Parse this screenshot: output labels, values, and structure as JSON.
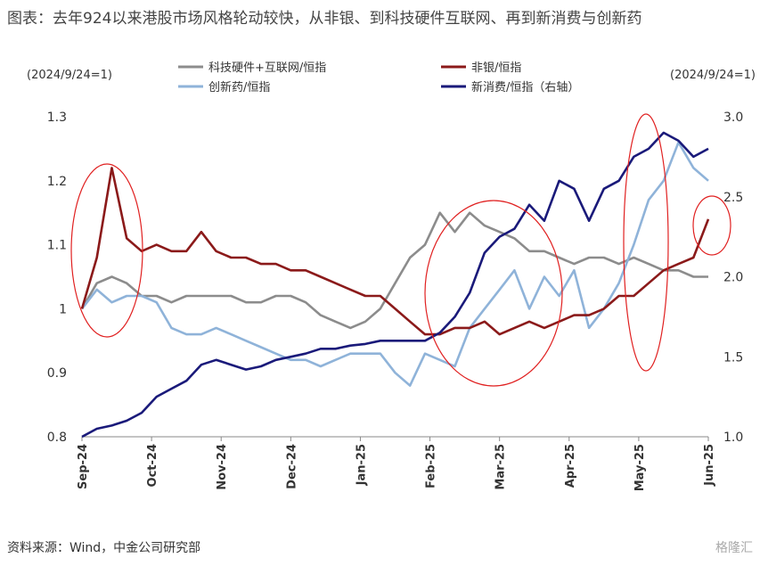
{
  "title": "图表：去年924以来港股市场风格轮动较快，从非银、到科技硬件互联网、再到新消费与创新药",
  "source": "资料来源：Wind，中金公司研究部",
  "watermark": "格隆汇",
  "chart_data": {
    "type": "line",
    "left_unit": "(2024/9/24=1)",
    "right_unit": "(2024/9/24=1)",
    "y_left": {
      "min": 0.8,
      "max": 1.3,
      "ticks": [
        "0.8",
        "0.9",
        "1",
        "1.1",
        "1.2",
        "1.3"
      ]
    },
    "y_right": {
      "min": 1.0,
      "max": 3.0,
      "ticks": [
        "1.0",
        "1.5",
        "2.0",
        "2.5",
        "3.0"
      ]
    },
    "x_ticks": [
      "Sep-24",
      "Oct-24",
      "Nov-24",
      "Dec-24",
      "Jan-25",
      "Feb-25",
      "Mar-25",
      "Apr-25",
      "May-25",
      "Jun-25"
    ],
    "series": [
      {
        "name": "科技硬件+互联网/恒指",
        "color": "#8c8c8c",
        "axis": "left",
        "values": [
          1.0,
          1.04,
          1.05,
          1.04,
          1.02,
          1.02,
          1.01,
          1.02,
          1.02,
          1.02,
          1.02,
          1.01,
          1.01,
          1.02,
          1.02,
          1.01,
          0.99,
          0.98,
          0.97,
          0.98,
          1.0,
          1.04,
          1.08,
          1.1,
          1.15,
          1.12,
          1.15,
          1.13,
          1.12,
          1.11,
          1.09,
          1.09,
          1.08,
          1.07,
          1.08,
          1.08,
          1.07,
          1.08,
          1.07,
          1.06,
          1.06,
          1.05,
          1.05
        ]
      },
      {
        "name": "非银/恒指",
        "color": "#8b1a1a",
        "axis": "left",
        "values": [
          1.0,
          1.08,
          1.22,
          1.11,
          1.09,
          1.1,
          1.09,
          1.09,
          1.12,
          1.09,
          1.08,
          1.08,
          1.07,
          1.07,
          1.06,
          1.06,
          1.05,
          1.04,
          1.03,
          1.02,
          1.02,
          1.0,
          0.98,
          0.96,
          0.96,
          0.97,
          0.97,
          0.98,
          0.96,
          0.97,
          0.98,
          0.97,
          0.98,
          0.99,
          0.99,
          1.0,
          1.02,
          1.02,
          1.04,
          1.06,
          1.07,
          1.08,
          1.14
        ]
      },
      {
        "name": "创新药/恒指",
        "color": "#8fb3d9",
        "axis": "left",
        "values": [
          1.0,
          1.03,
          1.01,
          1.02,
          1.02,
          1.01,
          0.97,
          0.96,
          0.96,
          0.97,
          0.96,
          0.95,
          0.94,
          0.93,
          0.92,
          0.92,
          0.91,
          0.92,
          0.93,
          0.93,
          0.93,
          0.9,
          0.88,
          0.93,
          0.92,
          0.91,
          0.97,
          1.0,
          1.03,
          1.06,
          1.0,
          1.05,
          1.02,
          1.06,
          0.97,
          1.0,
          1.04,
          1.1,
          1.17,
          1.2,
          1.26,
          1.22,
          1.2
        ]
      },
      {
        "name": "新消费/恒指（右轴）",
        "color": "#1a1a7a",
        "axis": "right",
        "values": [
          1.0,
          1.05,
          1.07,
          1.1,
          1.15,
          1.25,
          1.3,
          1.35,
          1.45,
          1.48,
          1.45,
          1.42,
          1.44,
          1.48,
          1.5,
          1.52,
          1.55,
          1.55,
          1.57,
          1.58,
          1.6,
          1.6,
          1.6,
          1.6,
          1.65,
          1.75,
          1.9,
          2.15,
          2.25,
          2.3,
          2.45,
          2.35,
          2.6,
          2.55,
          2.35,
          2.55,
          2.6,
          2.75,
          2.8,
          2.9,
          2.85,
          2.75,
          2.8
        ]
      }
    ]
  }
}
